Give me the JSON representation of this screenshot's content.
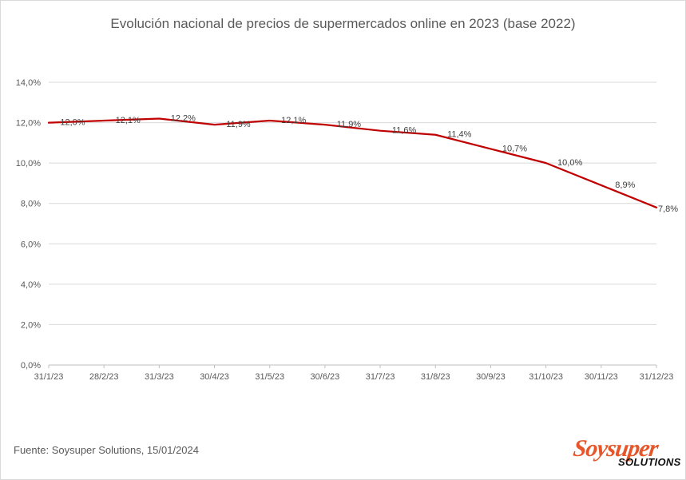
{
  "chart_data": {
    "type": "line",
    "title": "Evolución nacional de precios de supermercados online en 2023  (base 2022)",
    "categories": [
      "31/1/23",
      "28/2/23",
      "31/3/23",
      "30/4/23",
      "31/5/23",
      "30/6/23",
      "31/7/23",
      "31/8/23",
      "30/9/23",
      "31/10/23",
      "30/11/23",
      "31/12/23"
    ],
    "series": [
      {
        "values": [
          12.0,
          12.1,
          12.2,
          11.9,
          12.1,
          11.9,
          11.6,
          11.4,
          10.7,
          10.0,
          8.9,
          7.8
        ],
        "data_labels": [
          "12,0%",
          "12,1%",
          "12,2%",
          "11,9%",
          "12,1%",
          "11,9%",
          "11,6%",
          "11,4%",
          "10,7%",
          "10,0%",
          "8,9%",
          "7,8%"
        ],
        "color": "#c00000"
      }
    ],
    "yticks": [
      "0,0%",
      "2,0%",
      "4,0%",
      "6,0%",
      "8,0%",
      "10,0%",
      "12,0%",
      "14,0%"
    ],
    "ylim": [
      0,
      14
    ],
    "grid": true,
    "legend": "none"
  },
  "footer": {
    "source": "Fuente: Soysuper Solutions, 15/01/2024",
    "logo_text_main": "Soysuper",
    "logo_text_sub": "SOLUTIONS"
  }
}
